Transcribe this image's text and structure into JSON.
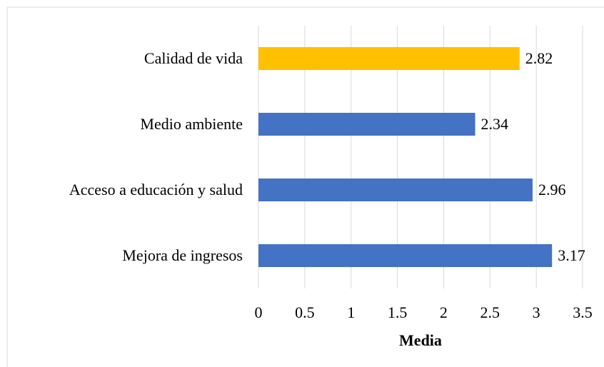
{
  "chart_data": {
    "type": "bar",
    "orientation": "horizontal",
    "categories": [
      "Calidad de vida",
      "Medio ambiente",
      "Acceso a educación y salud",
      "Mejora de ingresos"
    ],
    "values": [
      2.82,
      2.34,
      2.96,
      3.17
    ],
    "colors": [
      "#ffc000",
      "#4472c4",
      "#4472c4",
      "#4472c4"
    ],
    "xlabel": "Media",
    "xlim": [
      0,
      3.5
    ],
    "xticks": [
      0,
      0.5,
      1,
      1.5,
      2,
      2.5,
      3,
      3.5
    ],
    "grid": true
  }
}
